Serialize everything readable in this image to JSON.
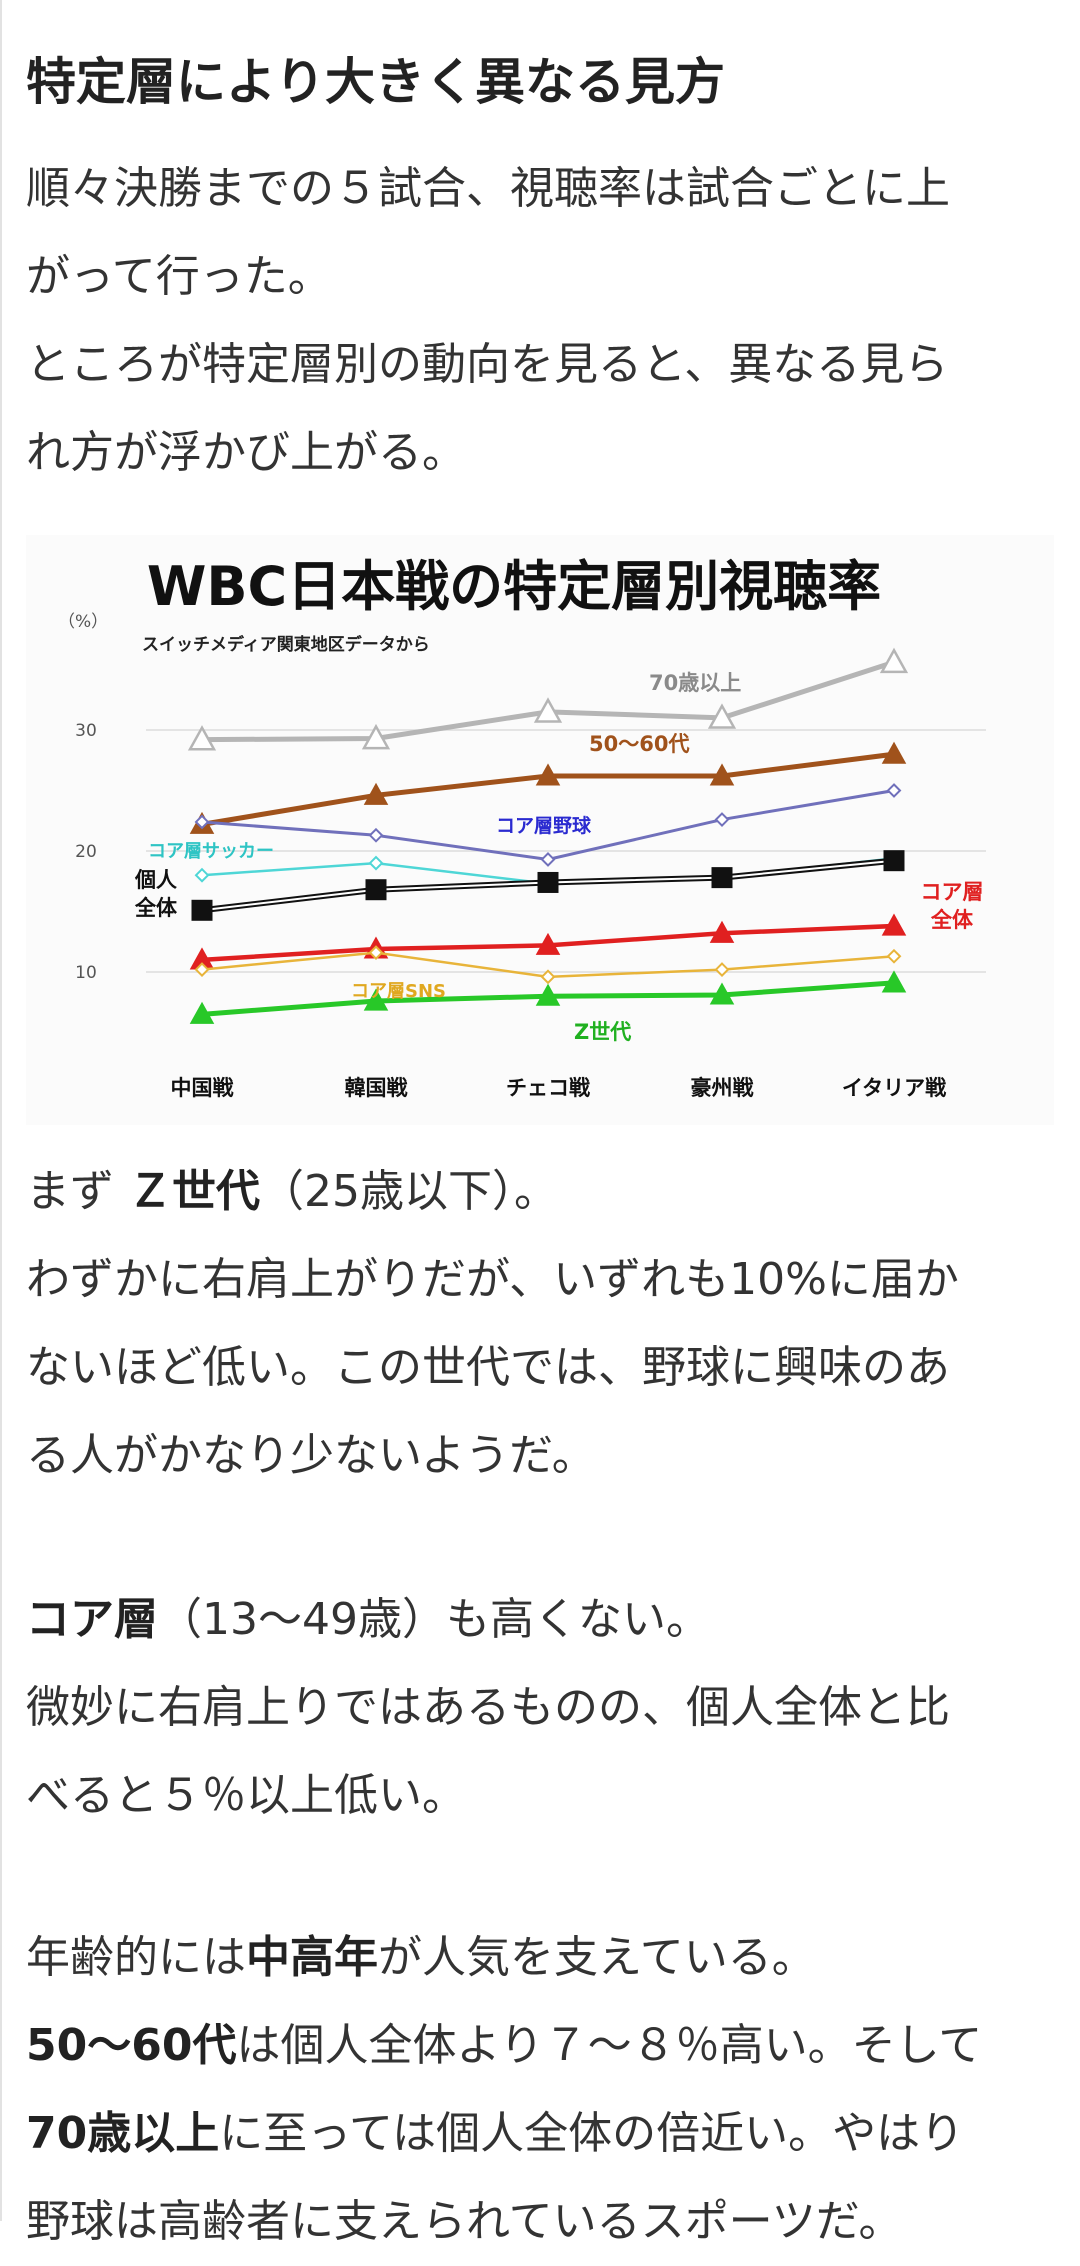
{
  "article": {
    "heading": "特定層により大きく異なる見方",
    "intro": [
      "順々決勝までの５試合、視聴率は試合ごとに上",
      "がって行った。",
      "ところが特定層別の動向を見ると、異なる見ら",
      "れ方が浮かび上がる。"
    ],
    "p_gen_z": {
      "l1_pre": "まず",
      "l1_bold": "Ｚ世代",
      "l1_post": "（25歳以下）。",
      "l2": "わずかに右肩上がりだが、いずれも10%に届か",
      "l3": "ないほど低い。この世代では、野球に興味のあ",
      "l4": "る人がかなり少ないようだ。"
    },
    "p_core": {
      "l1_bold": "コア層",
      "l1_post": "（13〜49歳）も高くない。",
      "l2": "微妙に右肩上りではあるものの、個人全体と比",
      "l3": "べると５％以上低い。"
    },
    "p_age": {
      "l1_pre": "年齢的には",
      "l1_bold": "中高年",
      "l1_post": "が人気を支えている。",
      "l2_bold": "50〜60代",
      "l2_post": "は個人全体より７〜８％高い。そして",
      "l3_bold": "70歳以上",
      "l3_post": "に至っては個人全体の倍近い。やはり",
      "l4": "野球は高齢者に支えられているスポーツだ。"
    }
  },
  "chart_data": {
    "type": "line",
    "title": "WBC日本戦の特定層別視聴率",
    "subtitle": "スイッチメディア関東地区データから",
    "unit_label": "（%）",
    "categories": [
      "中国戦",
      "韓国戦",
      "チェコ戦",
      "豪州戦",
      "イタリア戦"
    ],
    "yticks": [
      "10",
      "20",
      "30"
    ],
    "ylim": [
      5,
      38
    ],
    "grid": true,
    "series": [
      {
        "name": "70歳以上",
        "values": [
          29.2,
          29.3,
          31.5,
          31.0,
          35.6
        ],
        "color": "#b5b5b5",
        "marker": "triangle-open",
        "label_lines": [
          "70歳以上"
        ]
      },
      {
        "name": "50〜60代",
        "values": [
          22.2,
          24.6,
          26.2,
          26.2,
          28.0
        ],
        "color": "#a0521b",
        "marker": "triangle",
        "label_lines": [
          "50〜60代"
        ]
      },
      {
        "name": "コア層野球",
        "values": [
          22.4,
          21.3,
          19.3,
          22.6,
          25.0
        ],
        "color": "#7070bb",
        "marker": "diamond-open",
        "label_lines": [
          "コア層野球"
        ]
      },
      {
        "name": "コア層サッカー",
        "values": [
          18.0,
          19.0,
          17.3,
          17.8,
          19.4
        ],
        "color": "#4ed6d6",
        "marker": "diamond-open",
        "label_lines": [
          "コア層サッカー"
        ]
      },
      {
        "name": "個人全体",
        "values": [
          15.1,
          16.8,
          17.4,
          17.8,
          19.2
        ],
        "color": "#111111",
        "marker": "square",
        "label_lines": [
          "個人",
          "全体"
        ]
      },
      {
        "name": "コア層全体",
        "values": [
          11.0,
          11.9,
          12.2,
          13.2,
          13.8
        ],
        "color": "#e02020",
        "marker": "triangle",
        "label_lines": [
          "コア層",
          "全体"
        ]
      },
      {
        "name": "コア層SNS",
        "values": [
          10.2,
          11.6,
          9.6,
          10.2,
          11.3
        ],
        "color": "#e8b43a",
        "marker": "diamond-open",
        "label_lines": [
          "コア層SNS"
        ]
      },
      {
        "name": "Z世代",
        "values": [
          6.5,
          7.6,
          8.0,
          8.1,
          9.1
        ],
        "color": "#28c828",
        "marker": "triangle",
        "label_lines": [
          "Z世代"
        ]
      }
    ]
  }
}
